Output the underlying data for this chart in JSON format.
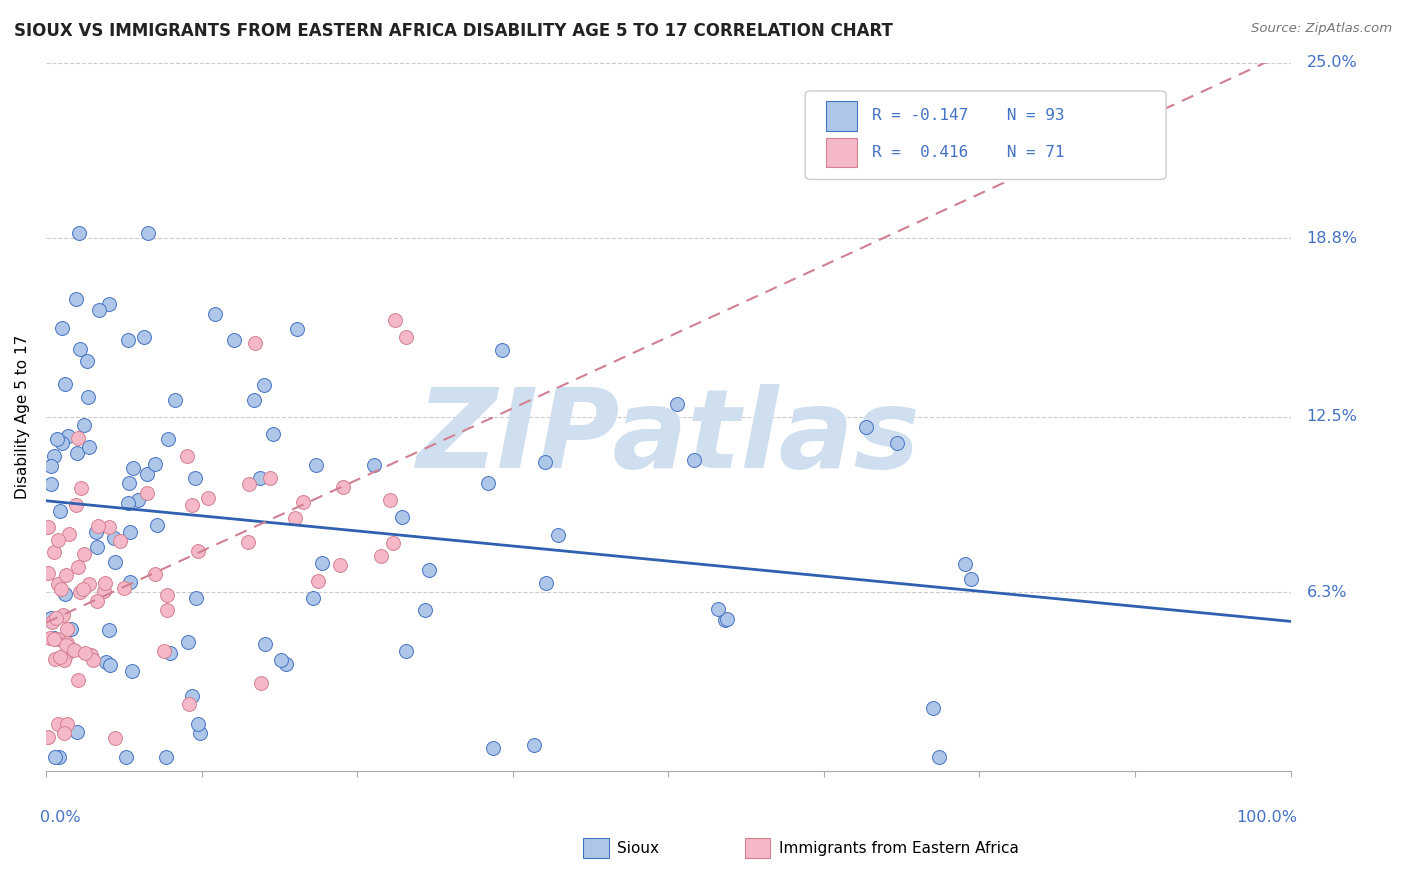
{
  "title": "SIOUX VS IMMIGRANTS FROM EASTERN AFRICA DISABILITY AGE 5 TO 17 CORRELATION CHART",
  "source_text": "Source: ZipAtlas.com",
  "ylabel": "Disability Age 5 to 17",
  "xmin": 0.0,
  "xmax": 1.0,
  "ymin": 0.0,
  "ymax": 0.25,
  "ytick_vals": [
    0.063,
    0.125,
    0.188,
    0.25
  ],
  "ytick_labels": [
    "6.3%",
    "12.5%",
    "18.8%",
    "25.0%"
  ],
  "xtick_labels": [
    "0.0%",
    "100.0%"
  ],
  "sioux_color": "#aec6e8",
  "sioux_edge_color": "#4472c4",
  "immigrants_color": "#f4b8c8",
  "immigrants_edge_color": "#d48090",
  "sioux_line_color": "#3060b0",
  "immigrants_line_color": "#d08090",
  "watermark_color": "#d0dff0",
  "grid_color": "#cccccc",
  "label_color": "#4472c4",
  "title_color": "#222222",
  "source_color": "#777777",
  "legend_r1": "R = -0.147",
  "legend_n1": "N = 93",
  "legend_r2": "R =  0.416",
  "legend_n2": "N = 71"
}
